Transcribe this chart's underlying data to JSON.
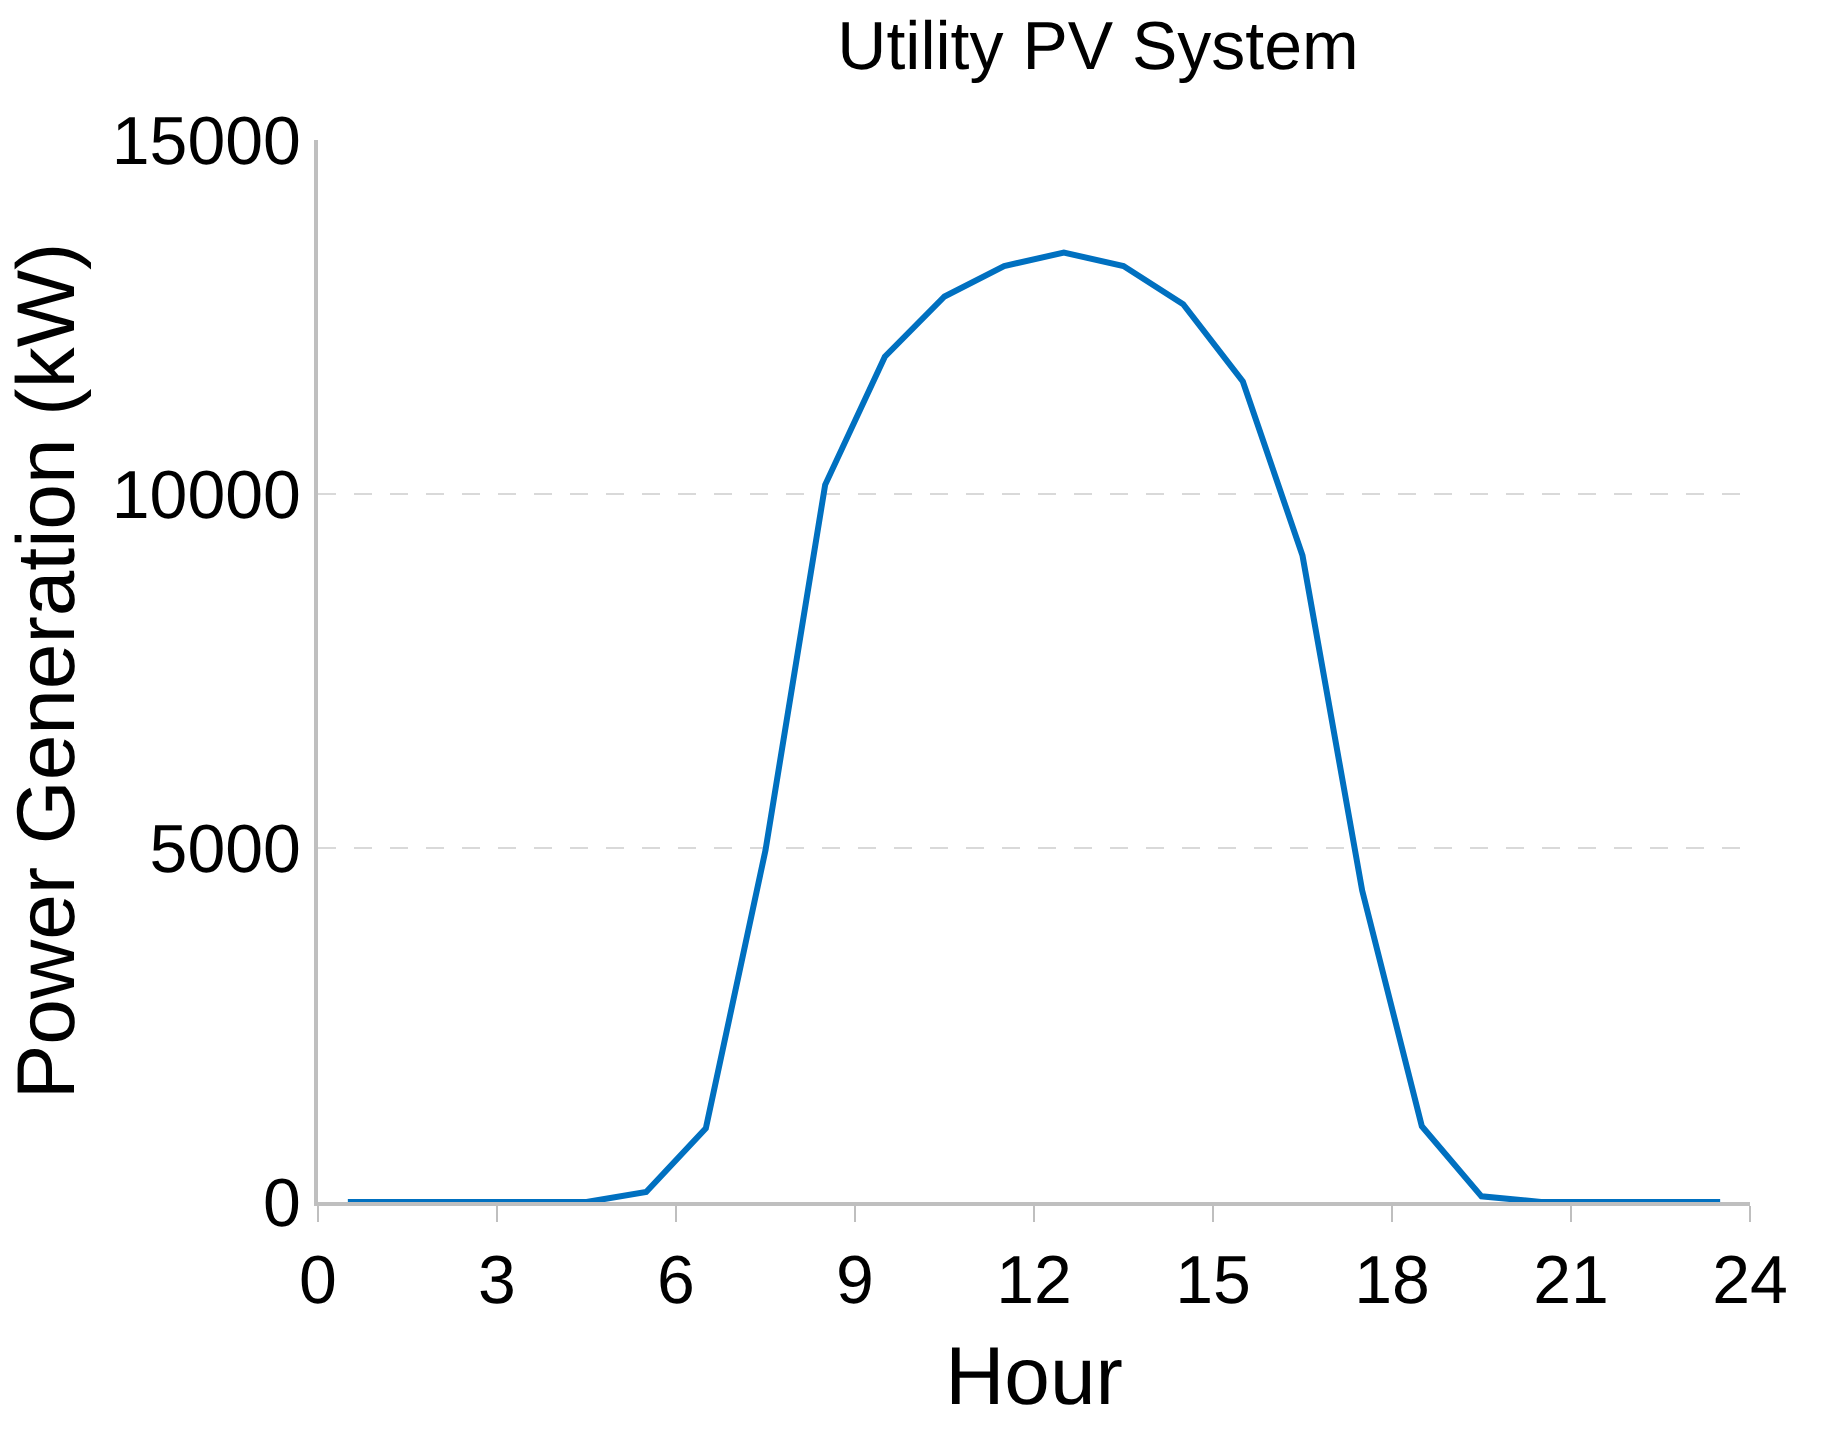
{
  "chart_data": {
    "type": "line",
    "title": "Utility PV System",
    "xlabel": "Hour",
    "ylabel": "Power Generation (kW)",
    "x": [
      0.5,
      1.5,
      2.5,
      3.5,
      4.5,
      5.5,
      6.5,
      7.5,
      8.5,
      9.5,
      10.5,
      11.5,
      12.5,
      13.5,
      14.5,
      15.5,
      16.5,
      17.5,
      18.5,
      19.5,
      20.5,
      21.5,
      22.5,
      23.5
    ],
    "series": [
      {
        "color": "#0070c0",
        "values": [
          0,
          0,
          0,
          0,
          0,
          140,
          1040,
          4970,
          10130,
          11940,
          12790,
          13220,
          13410,
          13220,
          12680,
          11590,
          9130,
          4400,
          1070,
          80,
          0,
          0,
          0,
          0
        ]
      }
    ],
    "xlim": [
      0,
      24
    ],
    "xticks": [
      0,
      3,
      6,
      9,
      12,
      15,
      18,
      21,
      24
    ],
    "ylim": [
      0,
      15000
    ],
    "yticks": [
      0,
      5000,
      10000,
      15000
    ],
    "grid": "y",
    "marker": "none",
    "line_style": "solid"
  }
}
